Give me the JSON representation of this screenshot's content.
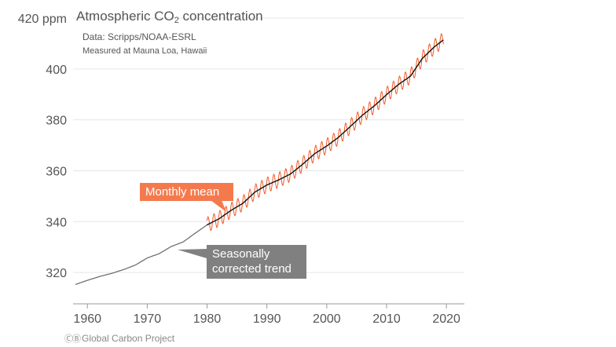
{
  "chart_data": {
    "type": "line",
    "title": "Atmospheric CO",
    "title_subscript": "2",
    "title_suffix": " concentration",
    "source": "Data: Scripps/NOAA-ESRL",
    "note": "Measured at Mauna Loa, Hawaii",
    "xlim": [
      1958,
      2023
    ],
    "ylim": [
      312,
      420
    ],
    "x_ticks": [
      1960,
      1970,
      1980,
      1990,
      2000,
      2010,
      2020
    ],
    "y_ticks": [
      320,
      340,
      360,
      380,
      400,
      420
    ],
    "y_tick_labels": [
      "320",
      "340",
      "360",
      "380",
      "400",
      "420 ppm"
    ],
    "grid": "horizontal",
    "series": [
      {
        "name": "Seasonally corrected trend",
        "color": "#707070",
        "x": [
          1958,
          1960,
          1962,
          1964,
          1966,
          1968,
          1970,
          1972,
          1974,
          1976,
          1978,
          1980,
          1982,
          1984,
          1986,
          1988,
          1990,
          1992,
          1994,
          1996,
          1998,
          2000,
          2002,
          2004,
          2006,
          2008,
          2010,
          2012,
          2014,
          2016,
          2018,
          2019.5
        ],
        "values": [
          315.3,
          316.9,
          318.4,
          319.6,
          321.1,
          322.9,
          325.7,
          327.4,
          330.2,
          332.0,
          335.4,
          338.7,
          341.1,
          344.4,
          347.2,
          351.6,
          354.4,
          356.4,
          358.8,
          362.6,
          366.7,
          369.7,
          373.2,
          377.5,
          381.9,
          385.6,
          389.9,
          393.9,
          397.2,
          404.2,
          408.7,
          411.4
        ]
      },
      {
        "name": "Monthly mean",
        "color": "#f05a28",
        "x_start": 1980,
        "x_end": 2019.5,
        "seasonal_amplitude_ppm": 3.0
      }
    ],
    "annotations": [
      {
        "text": "Monthly mean",
        "x": 1985,
        "y": 344,
        "color": "#f47a4e"
      },
      {
        "text_lines": [
          "Seasonally",
          "corrected trend"
        ],
        "x": 1976.5,
        "y": 332,
        "color": "#808080"
      }
    ]
  },
  "footer": {
    "icons": "ⒸⒷ",
    "text": "Global Carbon Project"
  },
  "colors": {
    "grid": "#e6e6e6",
    "axis": "#999999",
    "tick_text": "#555555"
  }
}
